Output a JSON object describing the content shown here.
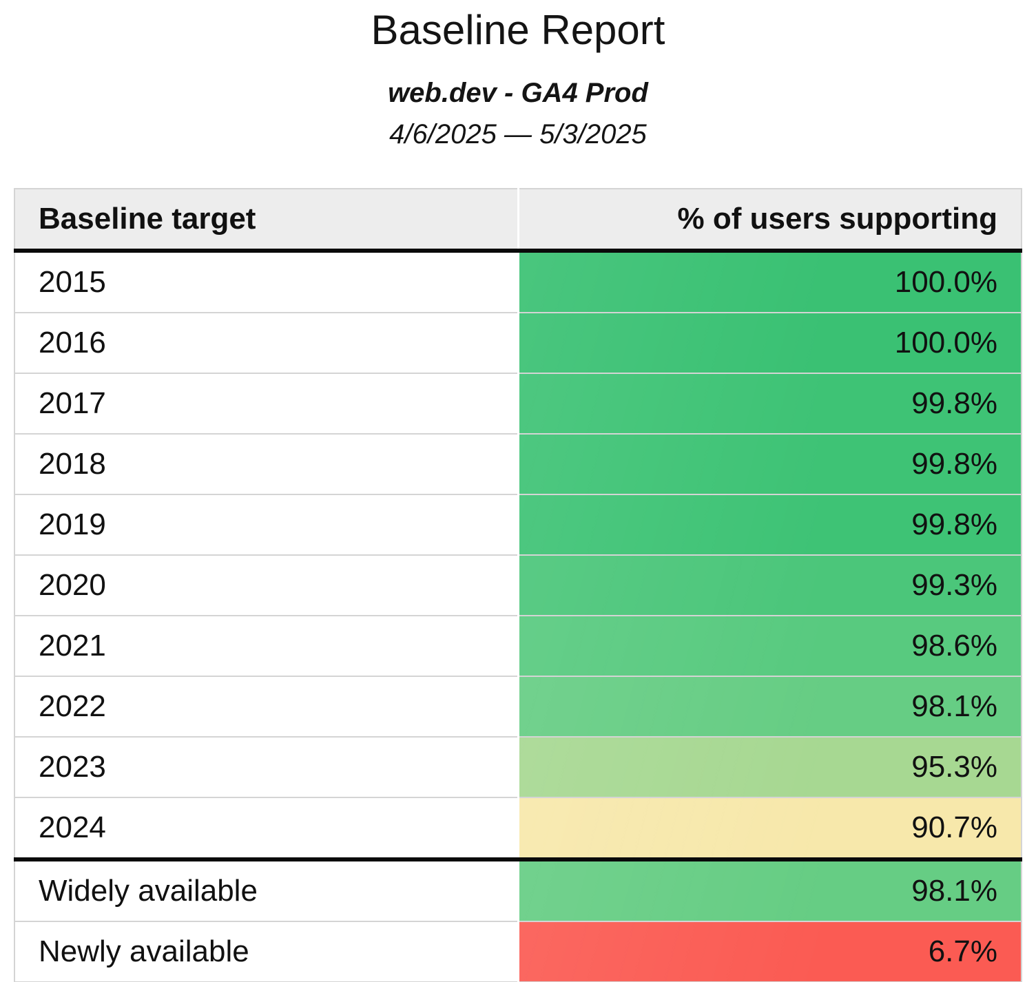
{
  "report": {
    "title": "Baseline Report",
    "subtitle": "web.dev - GA4 Prod",
    "date_range": "4/6/2025 — 5/3/2025"
  },
  "table": {
    "columns": [
      "Baseline target",
      "% of users supporting"
    ],
    "rows": [
      {
        "label": "2015",
        "value": "100.0%",
        "color": "#3ac173"
      },
      {
        "label": "2016",
        "value": "100.0%",
        "color": "#3ac173"
      },
      {
        "label": "2017",
        "value": "99.8%",
        "color": "#3ec375"
      },
      {
        "label": "2018",
        "value": "99.8%",
        "color": "#3ec375"
      },
      {
        "label": "2019",
        "value": "99.8%",
        "color": "#3ec375"
      },
      {
        "label": "2020",
        "value": "99.3%",
        "color": "#4bc67a"
      },
      {
        "label": "2021",
        "value": "98.6%",
        "color": "#58ca7f"
      },
      {
        "label": "2022",
        "value": "98.1%",
        "color": "#66cd84"
      },
      {
        "label": "2023",
        "value": "95.3%",
        "color": "#a7d892"
      },
      {
        "label": "2024",
        "value": "90.7%",
        "color": "#f7e8ab"
      },
      {
        "label": "Widely available",
        "value": "98.1%",
        "color": "#66cd84"
      },
      {
        "label": "Newly available",
        "value": "6.7%",
        "color": "#fb5b53"
      }
    ]
  },
  "colors": {
    "header_background": "#ededed",
    "grid_line": "#d4d4d4",
    "strong_rule": "#0a0a0a",
    "green_full": "#3ac173",
    "green_light": "#a7d892",
    "yellow": "#f7e8ab",
    "red": "#fb5b53"
  },
  "chart_data": {
    "type": "table",
    "title": "Baseline Report",
    "subtitle": "web.dev - GA4 Prod",
    "date_range": "4/6/2025 — 5/3/2025",
    "columns": [
      "Baseline target",
      "% of users supporting"
    ],
    "rows": [
      [
        "2015",
        100.0
      ],
      [
        "2016",
        100.0
      ],
      [
        "2017",
        99.8
      ],
      [
        "2018",
        99.8
      ],
      [
        "2019",
        99.8
      ],
      [
        "2020",
        99.3
      ],
      [
        "2021",
        98.6
      ],
      [
        "2022",
        98.1
      ],
      [
        "2023",
        95.3
      ],
      [
        "2024",
        90.7
      ],
      [
        "Widely available",
        98.1
      ],
      [
        "Newly available",
        6.7
      ]
    ],
    "units": "percent of users supporting",
    "layout": "heatmap-colored value column, red-yellow-green scale, thick rule after 2024 row separating yearly targets from availability rows"
  }
}
